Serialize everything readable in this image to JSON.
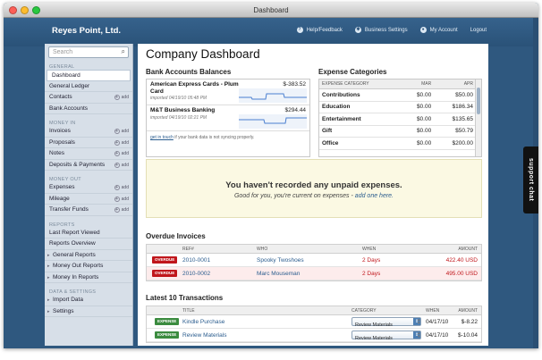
{
  "window": {
    "title": "Dashboard"
  },
  "header": {
    "brand": "Reyes Point, Ltd.",
    "nav": [
      {
        "label": "Help/Feedback",
        "icon": "help-icon"
      },
      {
        "label": "Business Settings",
        "icon": "gear-icon"
      },
      {
        "label": "My Account",
        "icon": "user-icon"
      },
      {
        "label": "Logout"
      }
    ]
  },
  "sidebar": {
    "search_placeholder": "Search",
    "add_label": "add",
    "sections": {
      "general": "GENERAL",
      "money_in": "MONEY IN",
      "money_out": "MONEY OUT",
      "reports": "REPORTS",
      "data": "DATA & SETTINGS"
    },
    "items": {
      "dashboard": "Dashboard",
      "general_ledger": "General Ledger",
      "contacts": "Contacts",
      "bank_accounts": "Bank Accounts",
      "invoices": "Invoices",
      "proposals": "Proposals",
      "notes": "Notes",
      "deposits": "Deposits & Payments",
      "expenses": "Expenses",
      "mileage": "Mileage",
      "transfer_funds": "Transfer Funds",
      "last_report": "Last Report Viewed",
      "reports_overview": "Reports Overview",
      "general_reports": "General Reports",
      "money_out_reports": "Money Out Reports",
      "money_in_reports": "Money In Reports",
      "import_data": "Import Data",
      "settings": "Settings"
    }
  },
  "main": {
    "title": "Company Dashboard",
    "bank": {
      "title": "Bank Accounts Balances",
      "accounts": [
        {
          "name": "American Express Cards - Plum Card",
          "imported": "imported 04/19/10 05:48 PM",
          "amount": "$-383.52"
        },
        {
          "name": "M&T Business Banking",
          "imported": "imported 04/19/10 02:21 PM",
          "amount": "$294.44"
        }
      ],
      "note_link": "get in touch",
      "note_text": " if your bank data is not syncing properly."
    },
    "expenses": {
      "title": "Expense Categories",
      "headers": [
        "EXPENSE CATEGORY",
        "MAR",
        "APR"
      ],
      "rows": [
        [
          "Contributions",
          "$0.00",
          "$50.00"
        ],
        [
          "Education",
          "$0.00",
          "$186.34"
        ],
        [
          "Entertainment",
          "$0.00",
          "$135.65"
        ],
        [
          "Gift",
          "$0.00",
          "$50.79"
        ],
        [
          "Office",
          "$0.00",
          "$200.00"
        ]
      ]
    },
    "banner": {
      "headline": "You haven't recorded any unpaid expenses.",
      "sub_text": "Good for you, you're current on expenses - ",
      "sub_link": "add one here."
    },
    "overdue": {
      "title": "Overdue Invoices",
      "headers": {
        "ref": "REF#",
        "who": "WHO",
        "when": "WHEN",
        "amount": "AMOUNT"
      },
      "rows": [
        {
          "badge": "OVERDUE",
          "ref": "2010-0001",
          "who": "Spooky Twoshoes",
          "when": "2 Days",
          "amount": "422.40 USD"
        },
        {
          "badge": "OVERDUE",
          "ref": "2010-0002",
          "who": "Marc Mouseman",
          "when": "2 Days",
          "amount": "495.00 USD"
        }
      ]
    },
    "transactions": {
      "title": "Latest 10 Transactions",
      "headers": {
        "title": "TITLE",
        "category": "CATEGORY",
        "when": "WHEN",
        "amount": "AMOUNT"
      },
      "rows": [
        {
          "badge": "EXPENSE",
          "title": "Kindle Purchase",
          "category": "Review Materials",
          "when": "04/17/10",
          "amount": "$-8.22"
        },
        {
          "badge": "EXPENSE",
          "title": "Review Materials",
          "category": "Review Materials",
          "when": "04/17/10",
          "amount": "$-10.04"
        }
      ]
    }
  },
  "support_chat": "support chat",
  "colors": {
    "accent": "#2a5c8e",
    "overdue": "#c0161b",
    "expense": "#3b8b3f",
    "appbar": "#2f587f"
  }
}
